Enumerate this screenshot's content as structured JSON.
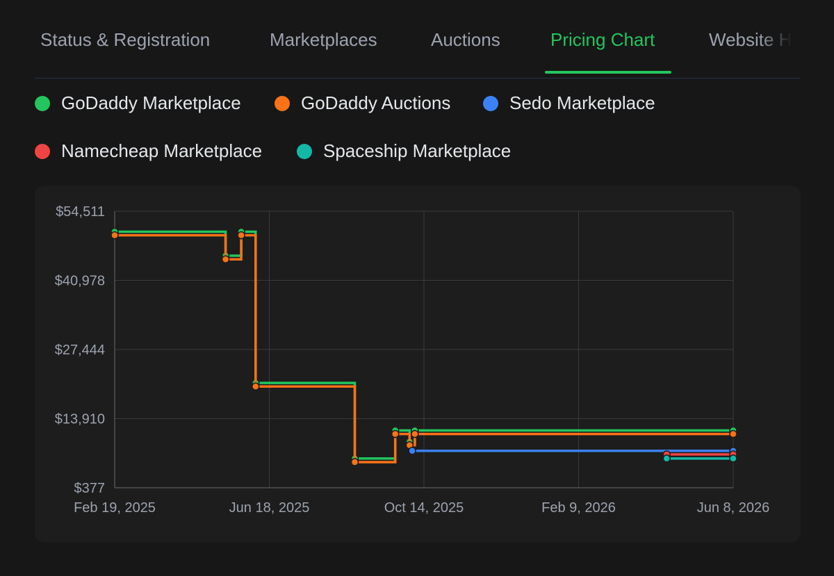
{
  "tabs": [
    {
      "label": "Status & Registration",
      "active": false
    },
    {
      "label": "Marketplaces",
      "active": false
    },
    {
      "label": "Auctions",
      "active": false
    },
    {
      "label": "Pricing Chart",
      "active": true
    },
    {
      "label": "Website History",
      "active": false
    }
  ],
  "legend": [
    {
      "label": "GoDaddy Marketplace",
      "color": "#22c55e"
    },
    {
      "label": "GoDaddy Auctions",
      "color": "#f97316"
    },
    {
      "label": "Sedo Marketplace",
      "color": "#3b82f6"
    },
    {
      "label": "Namecheap Marketplace",
      "color": "#ef4444"
    },
    {
      "label": "Spaceship Marketplace",
      "color": "#14b8a6"
    }
  ],
  "chart_data": {
    "type": "line",
    "step": true,
    "title": "",
    "xlabel": "",
    "ylabel": "",
    "grid": true,
    "ylim": [
      377,
      54511
    ],
    "xlim": [
      "2025-02-19",
      "2026-06-08"
    ],
    "y_ticks": [
      "$54,511",
      "$40,978",
      "$27,444",
      "$13,910",
      "$377"
    ],
    "x_ticks": [
      "Feb 19, 2025",
      "Jun 18, 2025",
      "Oct 14, 2025",
      "Feb 9, 2026",
      "Jun 8, 2026"
    ],
    "series": [
      {
        "name": "GoDaddy Marketplace",
        "color": "#22c55e",
        "points": [
          {
            "x": "2025-02-19",
            "y": 50500
          },
          {
            "x": "2025-05-15",
            "y": 45800
          },
          {
            "x": "2025-05-27",
            "y": 50500
          },
          {
            "x": "2025-06-07",
            "y": 20900
          },
          {
            "x": "2025-08-22",
            "y": 6100
          },
          {
            "x": "2025-09-22",
            "y": 11600
          },
          {
            "x": "2025-10-03",
            "y": 9400
          },
          {
            "x": "2025-10-07",
            "y": 11600
          },
          {
            "x": "2026-06-08",
            "y": 11600
          }
        ]
      },
      {
        "name": "GoDaddy Auctions",
        "color": "#f97316",
        "points": [
          {
            "x": "2025-02-19",
            "y": 49800
          },
          {
            "x": "2025-05-15",
            "y": 45100
          },
          {
            "x": "2025-05-27",
            "y": 49800
          },
          {
            "x": "2025-06-07",
            "y": 20200
          },
          {
            "x": "2025-08-22",
            "y": 5400
          },
          {
            "x": "2025-09-22",
            "y": 10900
          },
          {
            "x": "2025-10-03",
            "y": 8700
          },
          {
            "x": "2025-10-07",
            "y": 10900
          },
          {
            "x": "2026-06-08",
            "y": 10900
          }
        ]
      },
      {
        "name": "Sedo Marketplace",
        "color": "#3b82f6",
        "points": [
          {
            "x": "2025-10-05",
            "y": 7600
          },
          {
            "x": "2026-06-08",
            "y": 7600
          }
        ]
      },
      {
        "name": "Namecheap Marketplace",
        "color": "#ef4444",
        "points": [
          {
            "x": "2026-04-18",
            "y": 6900
          },
          {
            "x": "2026-06-08",
            "y": 6900
          }
        ]
      },
      {
        "name": "Spaceship Marketplace",
        "color": "#14b8a6",
        "points": [
          {
            "x": "2026-04-18",
            "y": 6100
          },
          {
            "x": "2026-06-08",
            "y": 6100
          }
        ]
      }
    ]
  }
}
